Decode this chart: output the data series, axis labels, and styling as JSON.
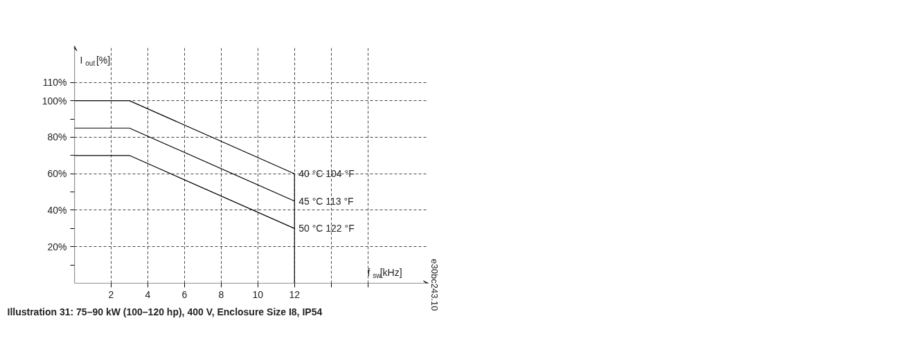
{
  "chart_data": {
    "type": "line",
    "title": "Illustration 31: 75–90 kW (100–120 hp), 400 V, Enclosure Size I8, IP54",
    "xlabel": "f$_{sw}$[kHz]",
    "ylabel": "I$_{out}$[%]",
    "annotations": [
      "e30bc243.10"
    ],
    "series": [
      {
        "name": "40 °C 104 °F",
        "color": "#000000",
        "x": [
          0,
          3,
          12,
          12
        ],
        "values": [
          100,
          100,
          60,
          0
        ]
      },
      {
        "name": "45 °C 113 °F",
        "color": "#000000",
        "x": [
          0,
          3,
          12
        ],
        "values": [
          85,
          85,
          45
        ]
      },
      {
        "name": "50 °C 122 °F",
        "color": "#000000",
        "x": [
          0,
          3,
          12
        ],
        "values": [
          70,
          70,
          30
        ]
      }
    ],
    "xlim": [
      0,
      19.3
    ],
    "ylim": [
      0,
      130
    ],
    "xticks": [
      2,
      4,
      6,
      8,
      10,
      12,
      {
        "value": 14,
        "label": null
      },
      {
        "value": 16,
        "label": null
      }
    ],
    "yticks": [
      {
        "value": 10,
        "label": null
      },
      {
        "value": 20,
        "label": "20%"
      },
      {
        "value": 30,
        "label": null
      },
      {
        "value": 40,
        "label": "40%"
      },
      {
        "value": 50,
        "label": null
      },
      {
        "value": 60,
        "label": "60%"
      },
      {
        "value": 70,
        "label": null
      },
      {
        "value": 80,
        "label": "80%"
      },
      {
        "value": 90,
        "label": null
      },
      {
        "value": 100,
        "label": "100%"
      },
      {
        "value": 110,
        "label": "110%"
      }
    ],
    "grid": true,
    "legend": false,
    "marker": "none",
    "line_style": "solid"
  }
}
